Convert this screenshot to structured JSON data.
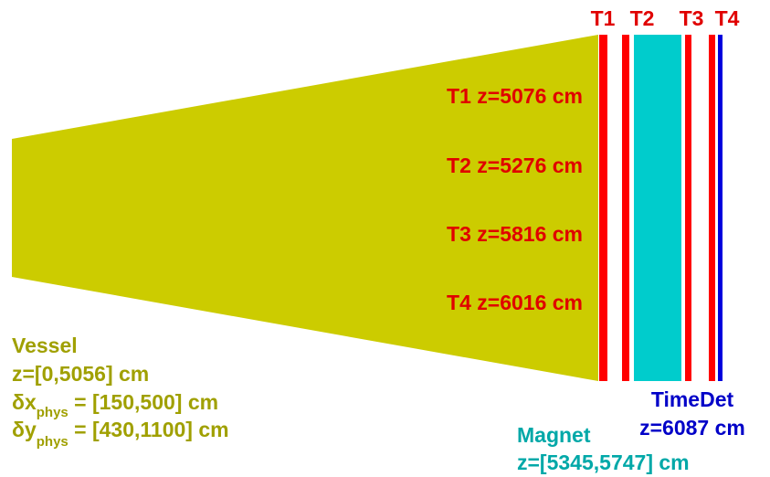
{
  "stations": [
    {
      "label": "T1",
      "text": "T1 z=5076 cm"
    },
    {
      "label": "T2",
      "text": "T2 z=5276 cm"
    },
    {
      "label": "T3",
      "text": "T3 z=5816 cm"
    },
    {
      "label": "T4",
      "text": "T4 z=6016 cm"
    }
  ],
  "vessel": {
    "title": "Vessel",
    "z": "z=[0,5056] cm",
    "dx": {
      "symbol": "δx",
      "sub": "phys",
      "value": " = [150,500] cm"
    },
    "dy": {
      "symbol": "δy",
      "sub": "phys",
      "value": " = [430,1100] cm"
    }
  },
  "magnet": {
    "title": "Magnet",
    "z": "z=[5345,5747] cm"
  },
  "timedet": {
    "title": "TimeDet",
    "z": "z=6087 cm"
  }
}
